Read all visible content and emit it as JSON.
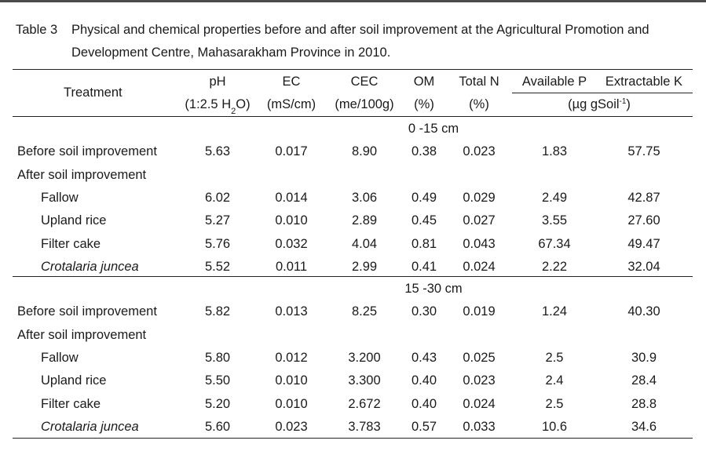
{
  "table": {
    "label": "Table 3",
    "caption_line1": "Physical and chemical properties before and after soil improvement at the Agricultural Promotion and",
    "caption_line2": "Development Centre, Mahasarakham Province in 2010.",
    "header": {
      "treatment": "Treatment",
      "ph": "pH",
      "ph_unit_pre": "(1:2.5 H",
      "ph_unit_sub": "2",
      "ph_unit_post": "O)",
      "ec": "EC",
      "ec_unit": "(mS/cm)",
      "cec": "CEC",
      "cec_unit": "(me/100g)",
      "om": "OM",
      "om_unit": "(%)",
      "totaln": "Total N",
      "totaln_unit": "(%)",
      "availp": "Available P",
      "extrk": "Extractable K",
      "pk_unit_pre": "(µg gSoil",
      "pk_unit_sup": "-1",
      "pk_unit_post": ")"
    },
    "sections": [
      {
        "depth": "0 -15 cm",
        "rows": [
          {
            "treatment": "Before soil improvement",
            "italic": false,
            "indent": false,
            "values": [
              "5.63",
              "0.017",
              "8.90",
              "0.38",
              "0.023",
              "1.83",
              "57.75"
            ]
          },
          {
            "treatment": "After soil improvement",
            "italic": false,
            "indent": false,
            "values": []
          },
          {
            "treatment": "Fallow",
            "italic": false,
            "indent": true,
            "values": [
              "6.02",
              "0.014",
              "3.06",
              "0.49",
              "0.029",
              "2.49",
              "42.87"
            ]
          },
          {
            "treatment": "Upland rice",
            "italic": false,
            "indent": true,
            "values": [
              "5.27",
              "0.010",
              "2.89",
              "0.45",
              "0.027",
              "3.55",
              "27.60"
            ]
          },
          {
            "treatment": "Filter cake",
            "italic": false,
            "indent": true,
            "values": [
              "5.76",
              "0.032",
              "4.04",
              "0.81",
              "0.043",
              "67.34",
              "49.47"
            ]
          },
          {
            "treatment": "Crotalaria juncea",
            "italic": true,
            "indent": true,
            "values": [
              "5.52",
              "0.011",
              "2.99",
              "0.41",
              "0.024",
              "2.22",
              "32.04"
            ]
          }
        ]
      },
      {
        "depth": "15 -30 cm",
        "rows": [
          {
            "treatment": "Before soil improvement",
            "italic": false,
            "indent": false,
            "values": [
              "5.82",
              "0.013",
              "8.25",
              "0.30",
              "0.019",
              "1.24",
              "40.30"
            ]
          },
          {
            "treatment": "After soil improvement",
            "italic": false,
            "indent": false,
            "values": []
          },
          {
            "treatment": "Fallow",
            "italic": false,
            "indent": true,
            "values": [
              "5.80",
              "0.012",
              "3.200",
              "0.43",
              "0.025",
              "2.5",
              "30.9"
            ]
          },
          {
            "treatment": "Upland rice",
            "italic": false,
            "indent": true,
            "values": [
              "5.50",
              "0.010",
              "3.300",
              "0.40",
              "0.023",
              "2.4",
              "28.4"
            ]
          },
          {
            "treatment": "Filter cake",
            "italic": false,
            "indent": true,
            "values": [
              "5.20",
              "0.010",
              "2.672",
              "0.40",
              "0.024",
              "2.5",
              "28.8"
            ]
          },
          {
            "treatment": "Crotalaria juncea",
            "italic": true,
            "indent": true,
            "values": [
              "5.60",
              "0.023",
              "3.783",
              "0.57",
              "0.033",
              "10.6",
              "34.6"
            ]
          }
        ]
      }
    ]
  }
}
